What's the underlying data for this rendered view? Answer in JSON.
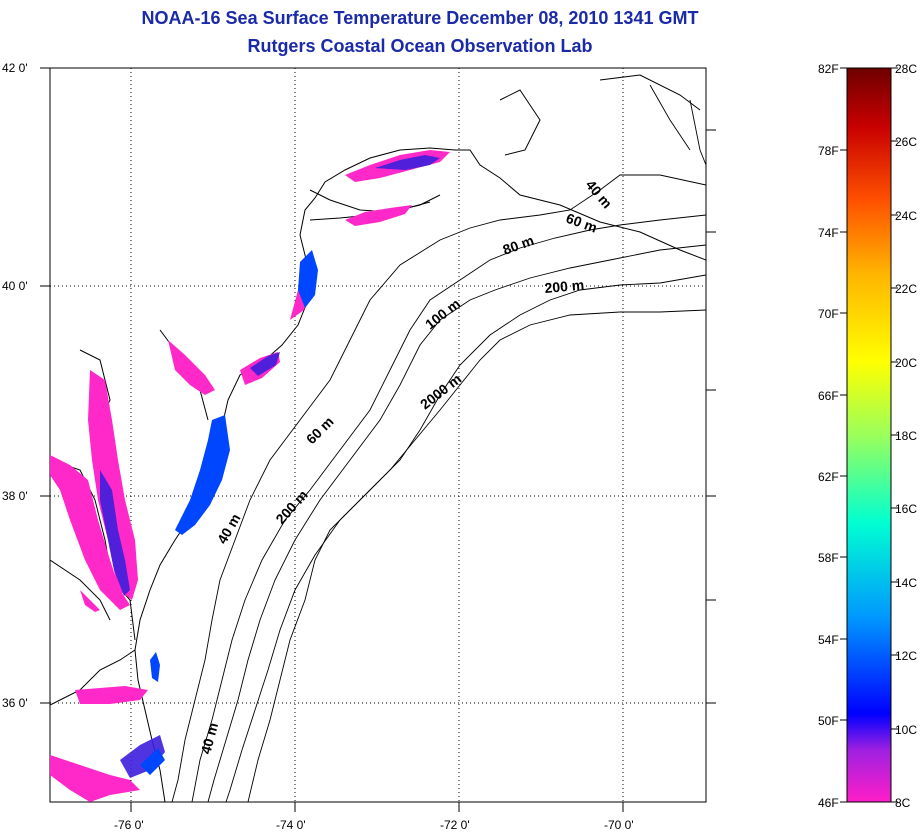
{
  "title_line1": "NOAA-16 Sea Surface Temperature December 08, 2010 1341 GMT",
  "title_line2": "Rutgers Coastal Ocean Observation Lab",
  "lat_labels": [
    "42 0'",
    "40 0'",
    "38 0'",
    "36 0'"
  ],
  "lon_labels": [
    "-76 0'",
    "-74 0'",
    "-72 0'",
    "-70 0'"
  ],
  "isobath_labels": [
    "40 m",
    "60 m",
    "80 m",
    "200 m",
    "100 m",
    "2000 m",
    "60 m",
    "200 m",
    "40 m",
    "40 m"
  ],
  "colorbar": {
    "f_labels": [
      "82F",
      "78F",
      "74F",
      "70F",
      "66F",
      "62F",
      "58F",
      "54F",
      "50F",
      "46F"
    ],
    "c_labels": [
      "28C",
      "26C",
      "24C",
      "22C",
      "20C",
      "18C",
      "16C",
      "14C",
      "12C",
      "10C",
      "8C"
    ],
    "colors": [
      "#6e0000",
      "#c80000",
      "#ff5000",
      "#ffb400",
      "#ffff00",
      "#9bff5a",
      "#00ffd2",
      "#0096ff",
      "#0000ff",
      "#ff1ec8"
    ]
  },
  "colors": {
    "title": "#1a2aa8",
    "cold_sst": "#ff28c8",
    "cool_sst": "#3c1edc",
    "mid_sst": "#0046ff"
  }
}
